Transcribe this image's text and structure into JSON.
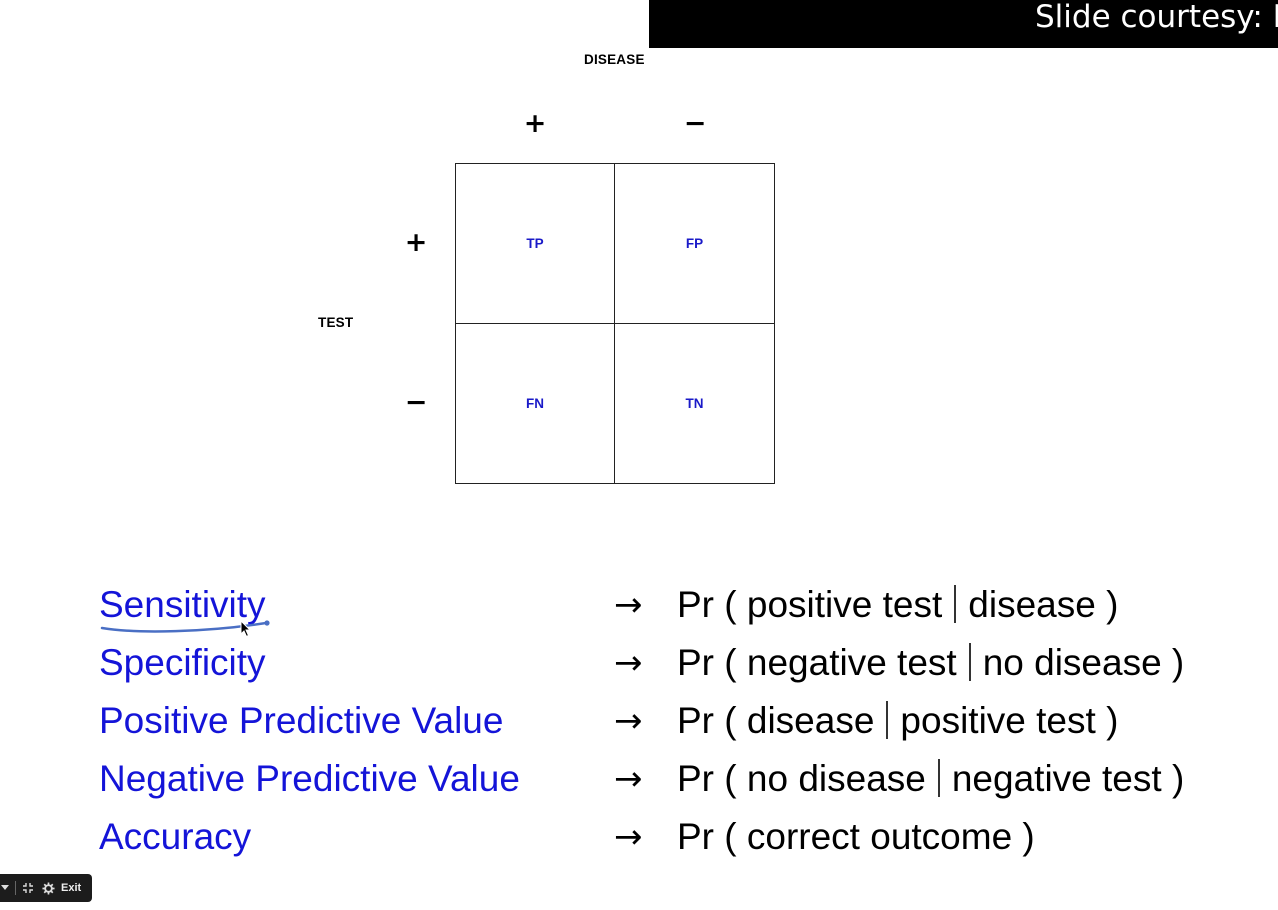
{
  "courtesy": {
    "text": "Slide courtesy: Ir"
  },
  "matrix": {
    "column_header": "DISEASE",
    "row_header": "TEST",
    "col_signs": [
      "+",
      "−"
    ],
    "row_signs": [
      "+",
      "−"
    ],
    "cells": [
      "TP",
      "FP",
      "FN",
      "TN"
    ]
  },
  "definitions": [
    {
      "term": "Sensitivity",
      "arrow": "→",
      "pr": "Pr ( positive test",
      "given": "disease )"
    },
    {
      "term": "Specificity",
      "arrow": "→",
      "pr": "Pr ( negative test",
      "given": "no disease )"
    },
    {
      "term": "Positive Predictive Value",
      "arrow": "→",
      "pr": "Pr ( disease",
      "given": "positive test )"
    },
    {
      "term": "Negative Predictive Value",
      "arrow": "→",
      "pr": "Pr ( no disease",
      "given": "negative test )"
    },
    {
      "term": "Accuracy",
      "arrow": "→",
      "pr": "Pr ( correct outcome )",
      "given": ""
    }
  ],
  "toolbar": {
    "exit_label": "Exit"
  },
  "colors": {
    "term": "#1414d8",
    "cell_text": "#1a1ac8",
    "annotation": "#4a6fc4"
  }
}
